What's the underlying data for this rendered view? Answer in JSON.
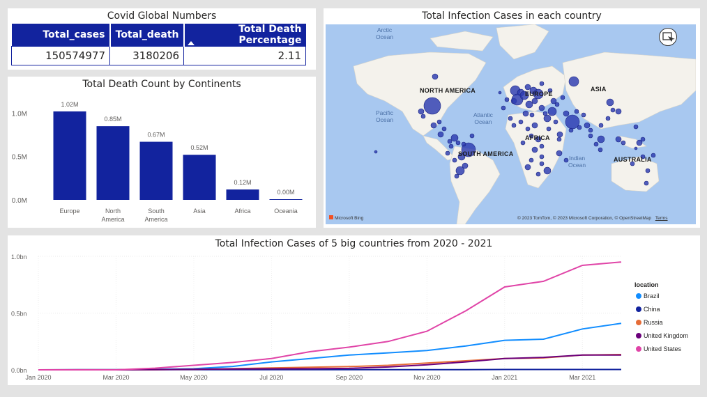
{
  "kpi": {
    "title": "Covid Global Numbers",
    "columns": [
      "Total_cases",
      "Total_death",
      "Total Death Percentage"
    ],
    "values": [
      "150574977",
      "3180206",
      "2.11"
    ]
  },
  "map": {
    "title": "Total Infection Cases in each country",
    "labels": {
      "north_america": "NORTH AMERICA",
      "europe": "EUROPE",
      "asia": "ASIA",
      "africa": "AFRICA",
      "south_america": "SOUTH AMERICA",
      "australia": "AUSTRALIA"
    },
    "oceans": {
      "arctic": "Arctic\nOcean",
      "pacific": "Pacific\nOcean",
      "atlantic": "Atlantic\nOcean",
      "indian": "Indian\nOcean"
    },
    "bing": "Microsoft Bing",
    "copyright": "© 2023 TomTom, © 2023 Microsoft Corporation, © OpenStreetMap",
    "terms": "Terms",
    "colors": {
      "bubble": "#2c3bb0",
      "water": "#a8c8f0",
      "land": "#f4f2ec"
    }
  },
  "chart_data": [
    {
      "type": "bar",
      "title": "Total Death Count by Continents",
      "categories": [
        "Europe",
        "North America",
        "South America",
        "Asia",
        "Africa",
        "Oceania"
      ],
      "category_lines": [
        [
          "Europe"
        ],
        [
          "North",
          "America"
        ],
        [
          "South",
          "America"
        ],
        [
          "Asia"
        ],
        [
          "Africa"
        ],
        [
          "Oceania"
        ]
      ],
      "values": [
        1.02,
        0.85,
        0.67,
        0.52,
        0.12,
        0.001
      ],
      "data_labels": [
        "1.02M",
        "0.85M",
        "0.67M",
        "0.52M",
        "0.12M",
        "0.00M"
      ],
      "yticks": [
        0,
        0.5,
        1.0
      ],
      "ytick_labels": [
        "0.0M",
        "0.5M",
        "1.0M"
      ],
      "ylim": [
        0,
        1.1
      ],
      "color": "#12239e"
    },
    {
      "type": "line",
      "title": "Total Infection Cases of 5 big countries from 2020 - 2021",
      "x": [
        "2020-01",
        "2020-02",
        "2020-03",
        "2020-04",
        "2020-05",
        "2020-06",
        "2020-07",
        "2020-08",
        "2020-09",
        "2020-10",
        "2020-11",
        "2020-12",
        "2021-01",
        "2021-02",
        "2021-03",
        "2021-04"
      ],
      "xticks": [
        "Jan 2020",
        "Mar 2020",
        "May 2020",
        "Jul 2020",
        "Sep 2020",
        "Nov 2020",
        "Jan 2021",
        "Mar 2021"
      ],
      "xtick_index": [
        0,
        2,
        4,
        6,
        8,
        10,
        12,
        14
      ],
      "yticks": [
        0,
        0.5,
        1.0
      ],
      "ytick_labels": [
        "0.0bn",
        "0.5bn",
        "1.0bn"
      ],
      "ylim": [
        0,
        1.0
      ],
      "legend_title": "location",
      "series": [
        {
          "name": "Brazil",
          "color": "#118dff",
          "values": [
            0,
            0,
            0,
            0.004,
            0.01,
            0.03,
            0.07,
            0.1,
            0.13,
            0.15,
            0.17,
            0.21,
            0.26,
            0.27,
            0.36,
            0.41
          ]
        },
        {
          "name": "China",
          "color": "#12239e",
          "values": [
            0,
            0.002,
            0.002,
            0.002,
            0.002,
            0.002,
            0.002,
            0.002,
            0.002,
            0.002,
            0.002,
            0.002,
            0.003,
            0.003,
            0.003,
            0.003
          ]
        },
        {
          "name": "Russia",
          "color": "#e66c37",
          "values": [
            0,
            0,
            0,
            0.002,
            0.005,
            0.01,
            0.017,
            0.023,
            0.029,
            0.04,
            0.06,
            0.08,
            0.1,
            0.105,
            0.13,
            0.135
          ]
        },
        {
          "name": "United Kingdom",
          "color": "#6b007b",
          "values": [
            0,
            0,
            0,
            0.002,
            0.005,
            0.008,
            0.009,
            0.01,
            0.013,
            0.025,
            0.045,
            0.07,
            0.1,
            0.11,
            0.13,
            0.13
          ]
        },
        {
          "name": "United States",
          "color": "#e044a7",
          "values": [
            0,
            0,
            0,
            0.015,
            0.04,
            0.065,
            0.1,
            0.16,
            0.2,
            0.25,
            0.34,
            0.52,
            0.73,
            0.78,
            0.92,
            0.95
          ]
        }
      ]
    }
  ]
}
